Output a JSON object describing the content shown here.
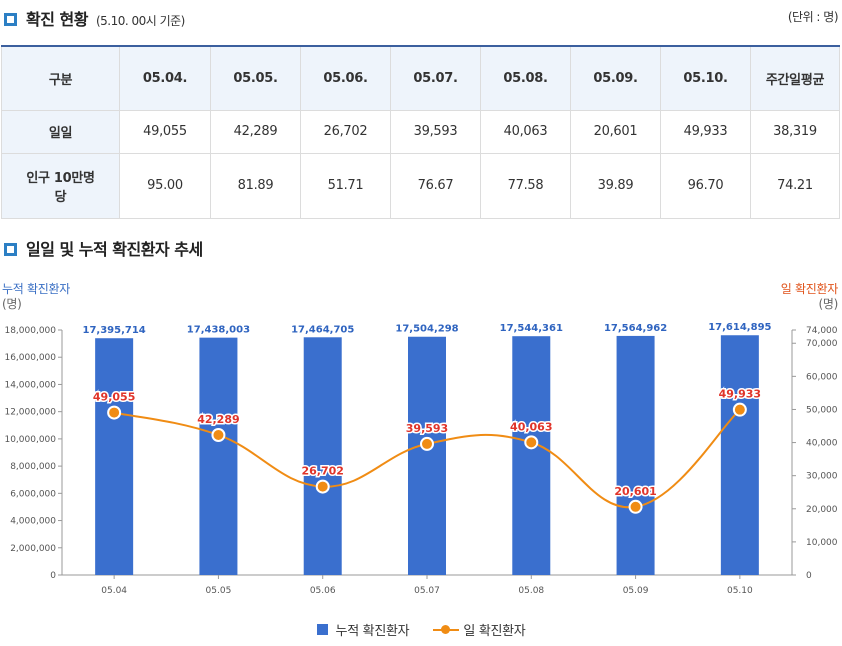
{
  "section1": {
    "title": "확진 현황",
    "subtitle": "(5.10. 00시 기준)",
    "unit": "(단위 : 명)"
  },
  "table": {
    "headers": [
      "구분",
      "05.04.",
      "05.05.",
      "05.06.",
      "05.07.",
      "05.08.",
      "05.09.",
      "05.10.",
      "주간일평균"
    ],
    "rows": [
      {
        "label": "일일",
        "values": [
          "49,055",
          "42,289",
          "26,702",
          "39,593",
          "40,063",
          "20,601",
          "49,933",
          "38,319"
        ]
      },
      {
        "label": "인구 10만명당",
        "values": [
          "95.00",
          "81.89",
          "51.71",
          "76.67",
          "77.58",
          "39.89",
          "96.70",
          "74.21"
        ]
      }
    ]
  },
  "section2": {
    "title": "일일 및 누적 확진환자 추세"
  },
  "colors": {
    "bar": "#3a6fce",
    "line": "#f08c14",
    "line_label": "#e0342a",
    "bar_label": "#2f64c0",
    "accent": "#2c7fc4"
  },
  "chart_data": {
    "type": "bar",
    "categories": [
      "05.04",
      "05.05",
      "05.06",
      "05.07",
      "05.08",
      "05.09",
      "05.10"
    ],
    "series": [
      {
        "name": "누적 확진환자",
        "type": "bar",
        "axis": "left",
        "values": [
          17395714,
          17438003,
          17464705,
          17504298,
          17544361,
          17564962,
          17614895
        ],
        "labels": [
          "17,395,714",
          "17,438,003",
          "17,464,705",
          "17,504,298",
          "17,544,361",
          "17,564,962",
          "17,614,895"
        ]
      },
      {
        "name": "일 확진환자",
        "type": "line",
        "axis": "right",
        "values": [
          49055,
          42289,
          26702,
          39593,
          40063,
          20601,
          49933
        ],
        "labels": [
          "49,055",
          "42,289",
          "26,702",
          "39,593",
          "40,063",
          "20,601",
          "49,933"
        ]
      }
    ],
    "left_axis": {
      "title": "누적 확진환자",
      "unit": "(명)",
      "ylim": [
        0,
        18000000
      ],
      "ticks": [
        0,
        2000000,
        4000000,
        6000000,
        8000000,
        10000000,
        12000000,
        14000000,
        16000000,
        18000000
      ],
      "tick_labels": [
        "0",
        "2,000,000",
        "4,000,000",
        "6,000,000",
        "8,000,000",
        "10,000,000",
        "12,000,000",
        "14,000,000",
        "16,000,000",
        "18,000,000"
      ]
    },
    "right_axis": {
      "title": "일 확진환자",
      "unit": "(명)",
      "ylim": [
        0,
        74000
      ],
      "ticks": [
        0,
        10000,
        20000,
        30000,
        40000,
        50000,
        60000,
        70000,
        74000
      ],
      "tick_labels": [
        "0",
        "10,000",
        "20,000",
        "30,000",
        "40,000",
        "50,000",
        "60,000",
        "70,000",
        "74,000"
      ]
    },
    "legend": [
      "누적 확진환자",
      "일 확진환자"
    ]
  }
}
